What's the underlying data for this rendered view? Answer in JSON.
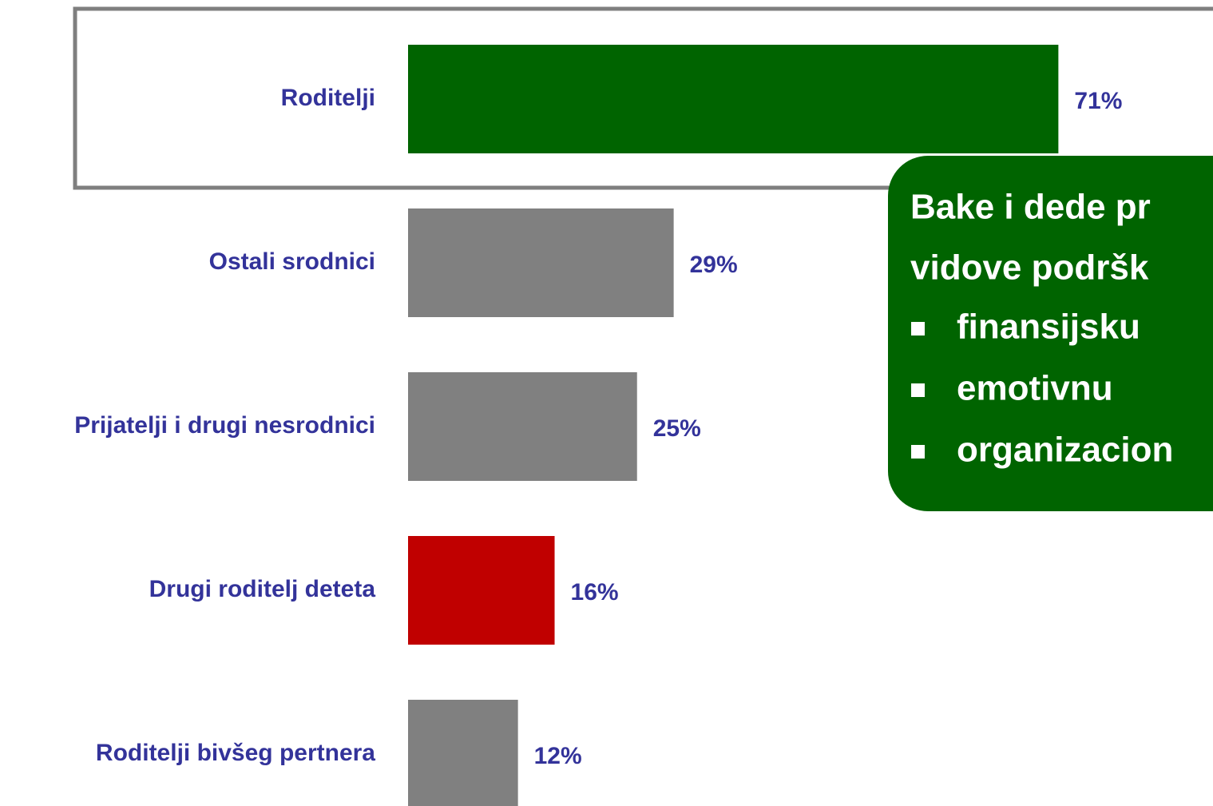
{
  "chart_data": {
    "type": "bar",
    "orientation": "horizontal",
    "categories": [
      "Roditelji",
      "Ostali srodnici",
      "Prijatelji i drugi nesrodnici",
      "Drugi roditelj deteta",
      "Roditelji bivšeg pertnera"
    ],
    "values": [
      71,
      29,
      25,
      16,
      12
    ],
    "value_labels": [
      "71%",
      "29%",
      "25%",
      "16%",
      "12%"
    ],
    "colors": [
      "#006400",
      "#808080",
      "#808080",
      "#c00000",
      "#808080"
    ],
    "annotation": {
      "lines": [
        "Bake i dede pr",
        "vidove podršk"
      ],
      "items": [
        "finansijsku",
        "emotivnu",
        "organizacion"
      ],
      "color": "#006400"
    }
  }
}
